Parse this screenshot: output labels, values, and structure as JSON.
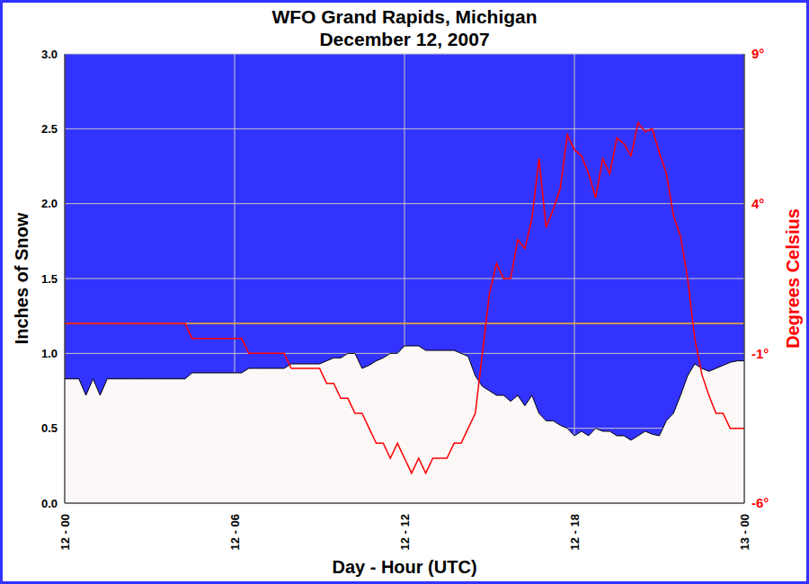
{
  "chart_data": {
    "type": "area",
    "title": "WFO Grand Rapids, Michigan",
    "subtitle": "December 12, 2007",
    "x_label": "Day - Hour (UTC)",
    "y_label": "Inches of Snow",
    "y2_label": "Degrees Celsius",
    "x": [
      0,
      0.25,
      0.5,
      0.75,
      1,
      1.25,
      1.5,
      1.75,
      2,
      2.25,
      2.5,
      2.75,
      3,
      3.25,
      3.5,
      3.75,
      4,
      4.25,
      4.5,
      4.75,
      5,
      5.25,
      5.5,
      5.75,
      6,
      6.25,
      6.5,
      6.75,
      7,
      7.25,
      7.5,
      7.75,
      8,
      8.25,
      8.5,
      8.75,
      9,
      9.25,
      9.5,
      9.75,
      10,
      10.25,
      10.5,
      10.75,
      11,
      11.25,
      11.5,
      11.75,
      12,
      12.25,
      12.5,
      12.75,
      13,
      13.25,
      13.5,
      13.75,
      14,
      14.25,
      14.5,
      14.75,
      15,
      15.25,
      15.5,
      15.75,
      16,
      16.25,
      16.5,
      16.75,
      17,
      17.25,
      17.5,
      17.75,
      18,
      18.25,
      18.5,
      18.75,
      19,
      19.25,
      19.5,
      19.75,
      20,
      20.25,
      20.5,
      20.75,
      21,
      21.25,
      21.5,
      21.75,
      22,
      22.25,
      22.5,
      22.75,
      23,
      23.25,
      23.5,
      23.75,
      24
    ],
    "xlim": [
      0,
      24
    ],
    "xticks": [
      {
        "value": 0,
        "label": "12 - 00"
      },
      {
        "value": 6,
        "label": "12 - 06"
      },
      {
        "value": 12,
        "label": "12 - 12"
      },
      {
        "value": 18,
        "label": "12 - 18"
      },
      {
        "value": 24,
        "label": "13 - 00"
      }
    ],
    "ylim": [
      0,
      3
    ],
    "yticks": [
      {
        "value": 0,
        "label": "0.0"
      },
      0.5,
      {
        "value": 1,
        "label": "1.0"
      },
      1.5,
      {
        "value": 2,
        "label": "2.0"
      },
      2.5,
      {
        "value": 3,
        "label": "3.0"
      }
    ],
    "y2lim": [
      -6,
      9
    ],
    "y2ticks": [
      {
        "value": -6,
        "label": "-6°"
      },
      {
        "value": -1,
        "label": "-1°"
      },
      {
        "value": 4,
        "label": "4°"
      },
      {
        "value": 9,
        "label": "9°"
      }
    ],
    "grid": true,
    "series": [
      {
        "name": "Inches of Snow",
        "type": "area",
        "color": "#fdf8f8",
        "values": [
          0.83,
          0.83,
          0.83,
          0.72,
          0.83,
          0.72,
          0.83,
          0.83,
          0.83,
          0.83,
          0.83,
          0.83,
          0.83,
          0.83,
          0.83,
          0.83,
          0.83,
          0.83,
          0.87,
          0.87,
          0.87,
          0.87,
          0.87,
          0.87,
          0.87,
          0.87,
          0.9,
          0.9,
          0.9,
          0.9,
          0.9,
          0.9,
          0.93,
          0.93,
          0.93,
          0.93,
          0.93,
          0.95,
          0.97,
          0.97,
          1.0,
          1.0,
          0.9,
          0.92,
          0.95,
          0.97,
          1.0,
          1.0,
          1.05,
          1.05,
          1.05,
          1.02,
          1.02,
          1.02,
          1.02,
          1.02,
          1.0,
          0.98,
          0.85,
          0.78,
          0.75,
          0.72,
          0.72,
          0.68,
          0.72,
          0.65,
          0.72,
          0.6,
          0.55,
          0.55,
          0.52,
          0.5,
          0.45,
          0.48,
          0.45,
          0.5,
          0.48,
          0.48,
          0.45,
          0.45,
          0.42,
          0.45,
          0.48,
          0.46,
          0.45,
          0.55,
          0.6,
          0.72,
          0.85,
          0.93,
          0.9,
          0.88,
          0.9,
          0.92,
          0.94,
          0.95,
          0.95
        ]
      },
      {
        "name": "Degrees Celsius",
        "type": "line",
        "axis": "y2",
        "color": "#ff0000",
        "values": [
          0,
          0,
          0,
          0,
          0,
          0,
          0,
          0,
          0,
          0,
          0,
          0,
          0,
          0,
          0,
          0,
          0,
          0,
          -0.5,
          -0.5,
          -0.5,
          -0.5,
          -0.5,
          -0.5,
          -0.5,
          -0.5,
          -1.0,
          -1.0,
          -1.0,
          -1.0,
          -1.0,
          -1.0,
          -1.5,
          -1.5,
          -1.5,
          -1.5,
          -1.5,
          -2,
          -2,
          -2.5,
          -2.5,
          -3,
          -3,
          -3.5,
          -4,
          -4,
          -4.5,
          -4,
          -4.5,
          -5,
          -4.5,
          -5,
          -4.5,
          -4.5,
          -4.5,
          -4,
          -4,
          -3.5,
          -3,
          -1,
          1,
          2,
          1.5,
          1.5,
          2.8,
          2.5,
          3.5,
          5.5,
          3.2,
          3.8,
          4.5,
          6.3,
          5.8,
          5.6,
          5,
          4.2,
          5.5,
          5,
          6.2,
          6,
          5.6,
          6.7,
          6.4,
          6.5,
          5.7,
          5,
          3.6,
          2.9,
          1.5,
          -0.5,
          -1.7,
          -2.4,
          -3,
          -3,
          -3.5,
          -3.5,
          -3.5
        ]
      }
    ],
    "reference_lines": [
      {
        "value": 0,
        "axis": "y2",
        "color": "#ffb31a"
      }
    ]
  }
}
